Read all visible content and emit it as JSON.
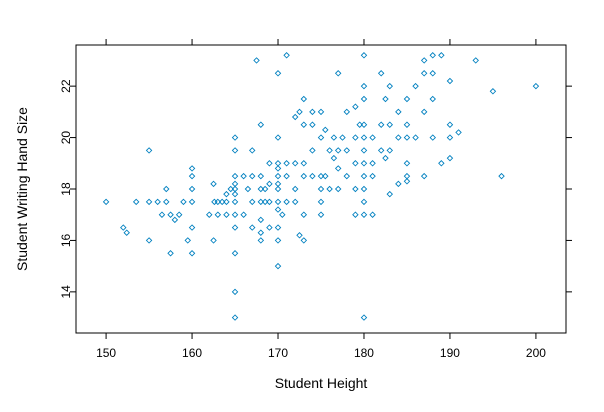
{
  "chart_data": {
    "type": "scatter",
    "title": "",
    "xlabel": "Student Height",
    "ylabel": "Student Writing Hand Size",
    "xlim": [
      146.5,
      203.5
    ],
    "ylim": [
      12.4,
      23.6
    ],
    "x_ticks": [
      150,
      160,
      170,
      180,
      190,
      200
    ],
    "x_tick_labels": [
      "150",
      "160",
      "170",
      "180",
      "190",
      "200"
    ],
    "y_ticks": [
      14,
      16,
      18,
      20,
      22
    ],
    "y_tick_labels": [
      "14",
      "16",
      "18",
      "20",
      "22"
    ],
    "grid": false,
    "legend": "none",
    "marker": "open-diamond",
    "point_color": "#0080c0",
    "points": [
      [
        150,
        17.5
      ],
      [
        152,
        16.5
      ],
      [
        152.4,
        16.3
      ],
      [
        153.5,
        17.5
      ],
      [
        155,
        19.5
      ],
      [
        155,
        17.5
      ],
      [
        155,
        16
      ],
      [
        156,
        17.5
      ],
      [
        156.5,
        17
      ],
      [
        157,
        18
      ],
      [
        157,
        17.5
      ],
      [
        157.5,
        17
      ],
      [
        158,
        16.8
      ],
      [
        157.5,
        15.5
      ],
      [
        158.5,
        17
      ],
      [
        159,
        17.5
      ],
      [
        159.5,
        16
      ],
      [
        160,
        18.8
      ],
      [
        160,
        18.5
      ],
      [
        160,
        18
      ],
      [
        160,
        17.5
      ],
      [
        160,
        16.5
      ],
      [
        160,
        15.5
      ],
      [
        162,
        17
      ],
      [
        162.5,
        18.2
      ],
      [
        162.6,
        17.5
      ],
      [
        163,
        17.5
      ],
      [
        163,
        17
      ],
      [
        162.5,
        16
      ],
      [
        163.5,
        17.5
      ],
      [
        164,
        17.8
      ],
      [
        164,
        17.5
      ],
      [
        164,
        17
      ],
      [
        164.5,
        18
      ],
      [
        165,
        20
      ],
      [
        165,
        19.5
      ],
      [
        165,
        18.5
      ],
      [
        165,
        18.2
      ],
      [
        165,
        18
      ],
      [
        165,
        17.8
      ],
      [
        165,
        17.5
      ],
      [
        165,
        17
      ],
      [
        165,
        16.5
      ],
      [
        165,
        15.5
      ],
      [
        165,
        14
      ],
      [
        165,
        13
      ],
      [
        166,
        18.5
      ],
      [
        166,
        17
      ],
      [
        166.5,
        18
      ],
      [
        167,
        19.5
      ],
      [
        167,
        18.5
      ],
      [
        167,
        17.5
      ],
      [
        167,
        16.5
      ],
      [
        167.5,
        23
      ],
      [
        168,
        20.5
      ],
      [
        168,
        18.5
      ],
      [
        168,
        18
      ],
      [
        168,
        17.5
      ],
      [
        168,
        16.8
      ],
      [
        168,
        16.3
      ],
      [
        168,
        16
      ],
      [
        168.5,
        18
      ],
      [
        168.5,
        17.5
      ],
      [
        169,
        19
      ],
      [
        169,
        18.2
      ],
      [
        169,
        17.5
      ],
      [
        169,
        16.5
      ],
      [
        170,
        22.5
      ],
      [
        170,
        20
      ],
      [
        170,
        19
      ],
      [
        170,
        18.8
      ],
      [
        170,
        18.5
      ],
      [
        170,
        18.2
      ],
      [
        170,
        18
      ],
      [
        170,
        17.5
      ],
      [
        170,
        17.2
      ],
      [
        170,
        16.5
      ],
      [
        170,
        16
      ],
      [
        170,
        15
      ],
      [
        170.5,
        17
      ],
      [
        171,
        23.2
      ],
      [
        171,
        19
      ],
      [
        171,
        18.5
      ],
      [
        171,
        17.5
      ],
      [
        172,
        20.8
      ],
      [
        172,
        19
      ],
      [
        172,
        18
      ],
      [
        172,
        17.5
      ],
      [
        172.5,
        21
      ],
      [
        172.5,
        16.2
      ],
      [
        173,
        21.5
      ],
      [
        173,
        20.5
      ],
      [
        173,
        19
      ],
      [
        173,
        18.5
      ],
      [
        173,
        17
      ],
      [
        173,
        16
      ],
      [
        174,
        21
      ],
      [
        174,
        20.5
      ],
      [
        174,
        19.5
      ],
      [
        174,
        18.5
      ],
      [
        175,
        21
      ],
      [
        175,
        20
      ],
      [
        175,
        18.5
      ],
      [
        175,
        18
      ],
      [
        175,
        17.5
      ],
      [
        175,
        17
      ],
      [
        175.5,
        20.3
      ],
      [
        175.5,
        18.5
      ],
      [
        176,
        19.5
      ],
      [
        176,
        18
      ],
      [
        176.5,
        20
      ],
      [
        176.5,
        19.2
      ],
      [
        177,
        22.5
      ],
      [
        177,
        19.5
      ],
      [
        177,
        18.8
      ],
      [
        177,
        18
      ],
      [
        177.5,
        20
      ],
      [
        178,
        21
      ],
      [
        178,
        19.5
      ],
      [
        178,
        18.5
      ],
      [
        179,
        21.2
      ],
      [
        179,
        20
      ],
      [
        179,
        19
      ],
      [
        179,
        18
      ],
      [
        179,
        17
      ],
      [
        179.5,
        20.5
      ],
      [
        180,
        23.2
      ],
      [
        180,
        22
      ],
      [
        180,
        21.5
      ],
      [
        180,
        20.5
      ],
      [
        180,
        20
      ],
      [
        180,
        19.5
      ],
      [
        180,
        19
      ],
      [
        180,
        18.5
      ],
      [
        180,
        18
      ],
      [
        180,
        17.5
      ],
      [
        180,
        17
      ],
      [
        180,
        13
      ],
      [
        181,
        20
      ],
      [
        181,
        19
      ],
      [
        181,
        18.5
      ],
      [
        181,
        17
      ],
      [
        182,
        22.5
      ],
      [
        182,
        20.5
      ],
      [
        182,
        19.5
      ],
      [
        182.5,
        21.5
      ],
      [
        182.5,
        19.2
      ],
      [
        183,
        22
      ],
      [
        183,
        20.5
      ],
      [
        183,
        19.5
      ],
      [
        183,
        17.8
      ],
      [
        184,
        21
      ],
      [
        184,
        20
      ],
      [
        184,
        18.2
      ],
      [
        185,
        21.5
      ],
      [
        185,
        20.5
      ],
      [
        185,
        20
      ],
      [
        185,
        19
      ],
      [
        185,
        18.5
      ],
      [
        185,
        18.3
      ],
      [
        186,
        22
      ],
      [
        186,
        20
      ],
      [
        187,
        23
      ],
      [
        187,
        22.5
      ],
      [
        187,
        21
      ],
      [
        187,
        18.5
      ],
      [
        188,
        23.2
      ],
      [
        188,
        22.5
      ],
      [
        188,
        21.5
      ],
      [
        188,
        20
      ],
      [
        189,
        23.2
      ],
      [
        189,
        19
      ],
      [
        190,
        22.2
      ],
      [
        190,
        20.5
      ],
      [
        190,
        20
      ],
      [
        190,
        19.2
      ],
      [
        191,
        20.2
      ],
      [
        193,
        23
      ],
      [
        195,
        21.8
      ],
      [
        196,
        18.5
      ],
      [
        200,
        22
      ]
    ]
  }
}
